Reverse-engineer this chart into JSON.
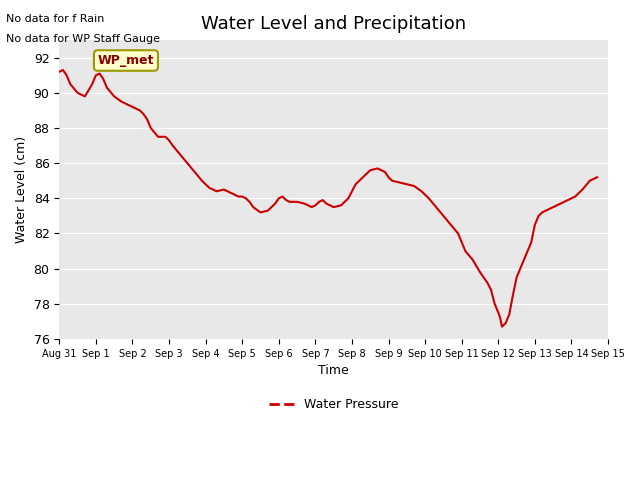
{
  "title": "Water Level and Precipitation",
  "xlabel": "Time",
  "ylabel": "Water Level (cm)",
  "ylim": [
    76,
    93
  ],
  "yticks": [
    76,
    78,
    80,
    82,
    84,
    86,
    88,
    90,
    92
  ],
  "line_color": "#cc0000",
  "line_width": 1.5,
  "bg_color": "#e8e8e8",
  "annotation_text1": "No data for f Rain",
  "annotation_text2": "No data for WP Staff Gauge",
  "wp_met_label": "WP_met",
  "legend_label": "Water Pressure",
  "x_dates": [
    "Aug 31",
    "Sep 1",
    "Sep 2",
    "Sep 3",
    "Sep 4",
    "Sep 5",
    "Sep 6",
    "Sep 7",
    "Sep 8",
    "Sep 9",
    "Sep 10",
    "Sep 11",
    "Sep 12",
    "Sep 13",
    "Sep 14",
    "Sep 15"
  ],
  "water_pressure_x": [
    0.0,
    0.1,
    0.2,
    0.3,
    0.5,
    0.7,
    0.9,
    1.0,
    1.1,
    1.2,
    1.3,
    1.5,
    1.7,
    1.9,
    2.0,
    2.1,
    2.2,
    2.3,
    2.4,
    2.5,
    2.7,
    2.9,
    3.0,
    3.1,
    3.3,
    3.5,
    3.7,
    3.9,
    4.0,
    4.1,
    4.2,
    4.3,
    4.5,
    4.6,
    4.7,
    4.9,
    5.0,
    5.1,
    5.2,
    5.3,
    5.5,
    5.7,
    5.9,
    6.0,
    6.1,
    6.2,
    6.3,
    6.5,
    6.7,
    6.9,
    7.0,
    7.1,
    7.2,
    7.3,
    7.5,
    7.7,
    7.9,
    8.0,
    8.1,
    8.3,
    8.5,
    8.7,
    8.9,
    9.0,
    9.1,
    9.3,
    9.5,
    9.7,
    9.9,
    10.0,
    10.1,
    10.3,
    10.5,
    10.7,
    10.9,
    11.0,
    11.1,
    11.3,
    11.5,
    11.7,
    11.8,
    11.9,
    12.0,
    12.05,
    12.1,
    12.2,
    12.3,
    12.4,
    12.5,
    12.7,
    12.9,
    13.0,
    13.1,
    13.2,
    13.3,
    13.5,
    13.7,
    13.9,
    14.0,
    14.1,
    14.3,
    14.5,
    14.7
  ],
  "water_pressure_y": [
    91.2,
    91.3,
    91.0,
    90.5,
    90.0,
    89.8,
    90.5,
    91.0,
    91.1,
    90.8,
    90.3,
    89.8,
    89.5,
    89.3,
    89.2,
    89.1,
    89.0,
    88.8,
    88.5,
    88.0,
    87.5,
    87.5,
    87.3,
    87.0,
    86.5,
    86.0,
    85.5,
    85.0,
    84.8,
    84.6,
    84.5,
    84.4,
    84.5,
    84.4,
    84.3,
    84.1,
    84.1,
    84.0,
    83.8,
    83.5,
    83.2,
    83.3,
    83.7,
    84.0,
    84.1,
    83.9,
    83.8,
    83.8,
    83.7,
    83.5,
    83.6,
    83.8,
    83.9,
    83.7,
    83.5,
    83.6,
    84.0,
    84.4,
    84.8,
    85.2,
    85.6,
    85.7,
    85.5,
    85.2,
    85.0,
    84.9,
    84.8,
    84.7,
    84.4,
    84.2,
    84.0,
    83.5,
    83.0,
    82.5,
    82.0,
    81.5,
    81.0,
    80.5,
    79.8,
    79.2,
    78.8,
    78.0,
    77.5,
    77.2,
    76.7,
    76.9,
    77.4,
    78.5,
    79.5,
    80.5,
    81.5,
    82.5,
    83.0,
    83.2,
    83.3,
    83.5,
    83.7,
    83.9,
    84.0,
    84.1,
    84.5,
    85.0,
    85.2
  ]
}
